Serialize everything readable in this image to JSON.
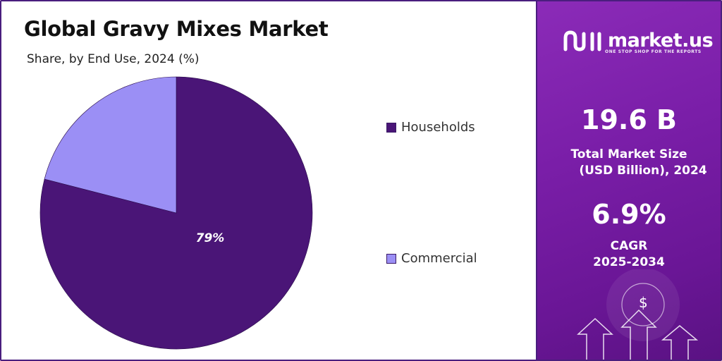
{
  "header": {
    "title": "Global Gravy Mixes Market",
    "subtitle": "Share, by End Use, 2024 (%)"
  },
  "chart_data": {
    "type": "pie",
    "categories": [
      "Households",
      "Commercial"
    ],
    "values": [
      79,
      21
    ],
    "data_labels": [
      "79%",
      ""
    ],
    "colors": [
      "#4a1577",
      "#9b8ff5"
    ],
    "legend_placement": "right"
  },
  "sidebar": {
    "brand": "market.us",
    "tagline": "ONE STOP SHOP FOR THE REPORTS",
    "market_size_value": "19.6 B",
    "market_size_label_line1": "Total Market Size",
    "market_size_label_line2": "(USD Billion), 2024",
    "cagr_value": "6.9%",
    "cagr_label_line1": "CAGR",
    "cagr_label_line2": "2025-2034",
    "dollar_symbol": "$"
  }
}
